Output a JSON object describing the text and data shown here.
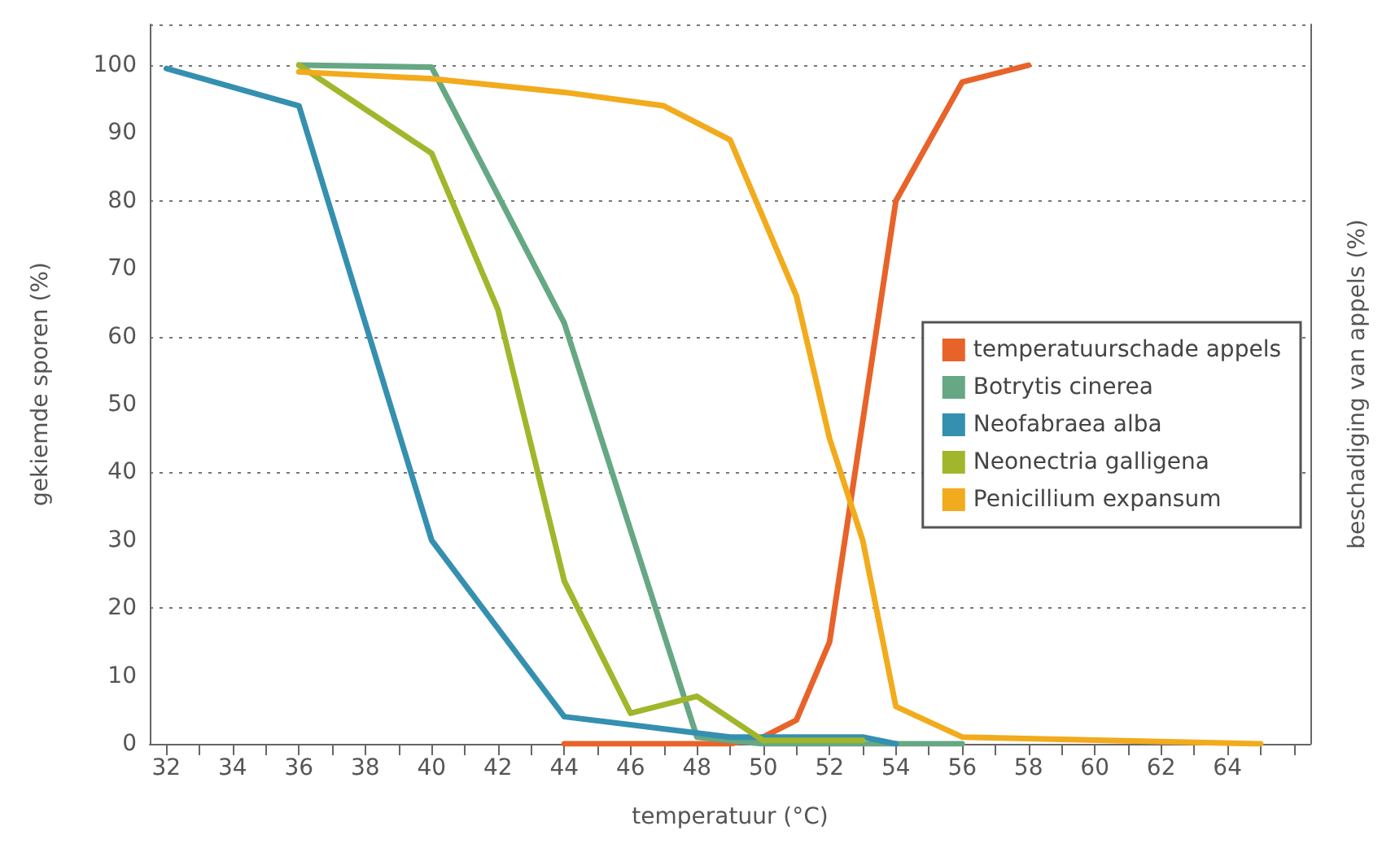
{
  "chart_data": {
    "type": "line",
    "xlabel": "temperatuur (°C)",
    "ylabel": "gekiemde sporen (%)",
    "y2label": "beschadiging van appels (%)",
    "xlim": [
      31.5,
      66.5
    ],
    "xticks": [
      32,
      {
        "value": 33,
        "label": null
      },
      34,
      {
        "value": 35,
        "label": null
      },
      36,
      {
        "value": 37,
        "label": null
      },
      38,
      {
        "value": 39,
        "label": null
      },
      40,
      {
        "value": 41,
        "label": null
      },
      42,
      {
        "value": 43,
        "label": null
      },
      44,
      {
        "value": 45,
        "label": null
      },
      46,
      {
        "value": 47,
        "label": null
      },
      48,
      {
        "value": 49,
        "label": null
      },
      50,
      {
        "value": 51,
        "label": null
      },
      52,
      {
        "value": 53,
        "label": null
      },
      54,
      {
        "value": 55,
        "label": null
      },
      56,
      {
        "value": 57,
        "label": null
      },
      58,
      {
        "value": 59,
        "label": null
      },
      60,
      {
        "value": 61,
        "label": null
      },
      62,
      {
        "value": 63,
        "label": null
      },
      64,
      {
        "value": 65,
        "label": null
      },
      {
        "value": 66,
        "label": null
      }
    ],
    "ylim": [
      0,
      106
    ],
    "yticks": [
      0,
      10,
      20,
      30,
      40,
      50,
      60,
      70,
      80,
      90,
      100
    ],
    "grid": "y",
    "legend": "right",
    "marker": "none",
    "line_style": "solid",
    "series": [
      {
        "name": "temperatuurschade appels",
        "color": "#e8632a",
        "x": [
          44,
          47,
          49,
          50,
          51,
          52,
          54,
          56,
          58
        ],
        "values": [
          0,
          0,
          0,
          1,
          3.5,
          15,
          80,
          97.5,
          100
        ]
      },
      {
        "name": "Botrytis cinerea",
        "color": "#66a884",
        "x": [
          36,
          40,
          44,
          48,
          50,
          56
        ],
        "values": [
          100,
          99.7,
          62,
          1,
          0,
          0
        ]
      },
      {
        "name": "Neofabraea alba",
        "color": "#3590b0",
        "x": [
          32,
          36,
          40,
          44,
          49,
          53,
          54
        ],
        "values": [
          99.5,
          94,
          30,
          4,
          1,
          1,
          0
        ]
      },
      {
        "name": "Neonectria galligena",
        "color": "#a2b62b",
        "x": [
          36,
          40,
          42,
          44,
          46,
          48,
          50,
          53
        ],
        "values": [
          100,
          87,
          64,
          24,
          4.5,
          7,
          0.5,
          0.5
        ]
      },
      {
        "name": "Penicillium expansum",
        "color": "#f2ab1c",
        "x": [
          36,
          40,
          44,
          47,
          49,
          51,
          52,
          53,
          54,
          56,
          65
        ],
        "values": [
          99,
          98,
          96,
          94,
          89,
          66,
          45,
          30,
          5.5,
          1,
          0
        ]
      }
    ]
  }
}
